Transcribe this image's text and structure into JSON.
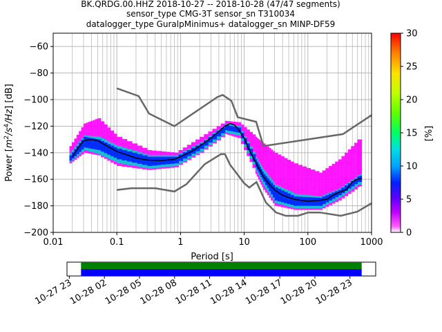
{
  "chart_data": [
    {
      "type": "heatmap",
      "title_lines": [
        "BK.QRDG.00.HHZ   2018-10-27 -- 2018-10-28  (47/47 segments)",
        "sensor_type CMG-3T sensor_sn T310034",
        "datalogger_type GuralpMinimus+ datalogger_sn MINP-DF59"
      ],
      "xlabel": "Period [s]",
      "ylabel_parts": [
        "Power [",
        "m",
        "2",
        "/s",
        "4",
        "/Hz",
        "] [dB]"
      ],
      "x_scale": "log",
      "xlim": [
        0.01,
        1000
      ],
      "ylim": [
        -200,
        -50
      ],
      "x_ticks": [
        {
          "value": 0.01,
          "label": "0.01"
        },
        {
          "value": 0.1,
          "label": "0.1"
        },
        {
          "value": 1,
          "label": "1"
        },
        {
          "value": 10,
          "label": "10"
        },
        {
          "value": 100,
          "label": "100"
        },
        {
          "value": 1000,
          "label": "1000"
        }
      ],
      "y_ticks": [
        {
          "value": -60,
          "label": "−60"
        },
        {
          "value": -80,
          "label": "−80"
        },
        {
          "value": -100,
          "label": "−100"
        },
        {
          "value": -120,
          "label": "−120"
        },
        {
          "value": -140,
          "label": "−140"
        },
        {
          "value": -160,
          "label": "−160"
        },
        {
          "value": -180,
          "label": "−180"
        },
        {
          "value": -200,
          "label": "−200"
        }
      ],
      "grid": true,
      "colorbar": {
        "label": "[%]",
        "range": [
          0,
          30
        ],
        "ticks": [
          {
            "value": 0,
            "label": "0"
          },
          {
            "value": 5,
            "label": "5"
          },
          {
            "value": 10,
            "label": "10"
          },
          {
            "value": 15,
            "label": "15"
          },
          {
            "value": 20,
            "label": "20"
          },
          {
            "value": 25,
            "label": "25"
          },
          {
            "value": 30,
            "label": "30"
          }
        ],
        "colors": [
          "#ffffff",
          "#ff00ff",
          "#7000ff",
          "#0000ff",
          "#0090ff",
          "#00e0e0",
          "#00ff60",
          "#80ff00",
          "#ffff00",
          "#ffa000",
          "#ff0000"
        ]
      },
      "noise_models": {
        "color": "#666666",
        "high": [
          [
            0.1,
            -91.5
          ],
          [
            0.22,
            -97.4
          ],
          [
            0.32,
            -110.5
          ],
          [
            0.8,
            -120
          ],
          [
            3.8,
            -98
          ],
          [
            4.6,
            -96.5
          ],
          [
            6.3,
            -101
          ],
          [
            7.9,
            -113.3
          ],
          [
            15.4,
            -116.7
          ],
          [
            20,
            -135
          ],
          [
            354.8,
            -126
          ],
          [
            10000,
            -80
          ]
        ],
        "low": [
          [
            0.1,
            -168
          ],
          [
            0.17,
            -166.7
          ],
          [
            0.4,
            -166.7
          ],
          [
            0.8,
            -169.2
          ],
          [
            1.24,
            -163.7
          ],
          [
            2.4,
            -148.6
          ],
          [
            4.3,
            -141.1
          ],
          [
            5,
            -141.1
          ],
          [
            6,
            -149
          ],
          [
            10,
            -163
          ],
          [
            12,
            -166.2
          ],
          [
            15.6,
            -162.1
          ],
          [
            21.9,
            -177.5
          ],
          [
            31.6,
            -185
          ],
          [
            45,
            -187.5
          ],
          [
            70,
            -187.5
          ],
          [
            101,
            -185
          ],
          [
            154,
            -185
          ],
          [
            328,
            -187.5
          ],
          [
            600,
            -184.4
          ],
          [
            1000,
            -178
          ]
        ]
      },
      "median_curve": {
        "color": "#000000",
        "points": [
          [
            0.02,
            -143
          ],
          [
            0.025,
            -136
          ],
          [
            0.03,
            -131
          ],
          [
            0.04,
            -130
          ],
          [
            0.05,
            -131
          ],
          [
            0.07,
            -135
          ],
          [
            0.1,
            -139
          ],
          [
            0.15,
            -142
          ],
          [
            0.2,
            -144
          ],
          [
            0.3,
            -145.5
          ],
          [
            0.5,
            -146
          ],
          [
            0.8,
            -145
          ],
          [
            1,
            -143
          ],
          [
            1.5,
            -139
          ],
          [
            2,
            -135
          ],
          [
            3,
            -129
          ],
          [
            4,
            -124
          ],
          [
            5,
            -120
          ],
          [
            6,
            -118
          ],
          [
            7,
            -119
          ],
          [
            8,
            -122
          ],
          [
            10,
            -129
          ],
          [
            12,
            -138
          ],
          [
            15,
            -147
          ],
          [
            20,
            -158
          ],
          [
            25,
            -164
          ],
          [
            30,
            -168
          ],
          [
            40,
            -172
          ],
          [
            60,
            -175
          ],
          [
            80,
            -176
          ],
          [
            100,
            -176.5
          ],
          [
            150,
            -176
          ],
          [
            200,
            -175
          ],
          [
            250,
            -172
          ],
          [
            300,
            -170
          ],
          [
            400,
            -168
          ],
          [
            500,
            -162
          ],
          [
            600,
            -160
          ],
          [
            700,
            -159
          ]
        ]
      },
      "density_bands": [
        {
          "name": "core",
          "color": "#0020ff",
          "points": [
            [
              0.018,
              -142,
              -146
            ],
            [
              0.03,
              -128,
              -136
            ],
            [
              0.05,
              -130,
              -138
            ],
            [
              0.1,
              -137,
              -145
            ],
            [
              0.3,
              -143,
              -150
            ],
            [
              0.8,
              -143,
              -148
            ],
            [
              2,
              -133,
              -137
            ],
            [
              5,
              -119,
              -123
            ],
            [
              8,
              -121,
              -125
            ],
            [
              15,
              -145,
              -151
            ],
            [
              20,
              -156,
              -162
            ],
            [
              30,
              -166,
              -176
            ],
            [
              60,
              -173,
              -180
            ],
            [
              150,
              -174,
              -180
            ],
            [
              300,
              -168,
              -172
            ],
            [
              600,
              -158,
              -162
            ],
            [
              700,
              -157,
              -162
            ]
          ]
        },
        {
          "name": "mid",
          "color": "#00d0d0",
          "points": [
            [
              0.018,
              -140,
              -147
            ],
            [
              0.03,
              -127,
              -138
            ],
            [
              0.05,
              -128,
              -141
            ],
            [
              0.1,
              -135,
              -148
            ],
            [
              0.3,
              -142,
              -152
            ],
            [
              0.8,
              -142,
              -150
            ],
            [
              2,
              -132,
              -139
            ],
            [
              5,
              -118,
              -125
            ],
            [
              8,
              -120,
              -127
            ],
            [
              15,
              -143,
              -153
            ],
            [
              20,
              -153,
              -165
            ],
            [
              30,
              -164,
              -178
            ],
            [
              60,
              -171,
              -182
            ],
            [
              150,
              -173,
              -182
            ],
            [
              300,
              -167,
              -174
            ],
            [
              600,
              -157,
              -164
            ],
            [
              700,
              -156,
              -164
            ]
          ]
        },
        {
          "name": "spread",
          "color": "#ff00ff",
          "points": [
            [
              0.018,
              -135,
              -148
            ],
            [
              0.03,
              -118,
              -140
            ],
            [
              0.05,
              -114,
              -142
            ],
            [
              0.1,
              -128,
              -150
            ],
            [
              0.3,
              -138,
              -153
            ],
            [
              0.8,
              -140,
              -151
            ],
            [
              2,
              -128,
              -140
            ],
            [
              5,
              -116,
              -126
            ],
            [
              8,
              -117,
              -129
            ],
            [
              15,
              -128,
              -156
            ],
            [
              20,
              -133,
              -168
            ],
            [
              30,
              -140,
              -180
            ],
            [
              60,
              -148,
              -183
            ],
            [
              150,
              -155,
              -183
            ],
            [
              300,
              -145,
              -176
            ],
            [
              600,
              -130,
              -166
            ],
            [
              700,
              -130,
              -165
            ]
          ]
        }
      ]
    },
    {
      "type": "timeline",
      "x_ticks": [
        "10-27 23",
        "10-28 02",
        "10-28 05",
        "10-28 08",
        "10-28 11",
        "10-28 14",
        "10-28 17",
        "10-28 20",
        "10-28 23"
      ],
      "xlim_hours_from_first_tick": [
        -0.2,
        26.2
      ],
      "series": [
        {
          "color": "#008000",
          "start_hour": 1.0,
          "end_hour": 25.0
        },
        {
          "color": "#0000ff",
          "start_hour": 1.0,
          "end_hour": 25.0
        }
      ]
    }
  ]
}
